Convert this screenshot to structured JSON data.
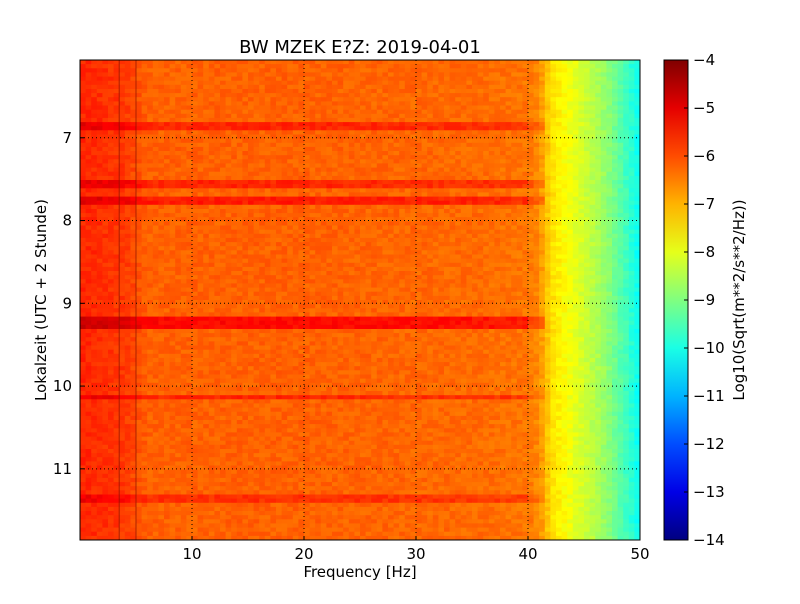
{
  "chart_data": {
    "type": "heatmap",
    "title": "BW MZEK E?Z: 2019-04-01",
    "xlabel": "Frequency [Hz]",
    "ylabel": "Lokalzeit (UTC + 2 Stunde)",
    "colorbar_label": "Log10(Sqrt(m**2/s**2/Hz))",
    "colormap": "jet",
    "xlim": [
      0,
      50
    ],
    "ylim": [
      6.06,
      11.86
    ],
    "y_inverted": true,
    "clim": [
      -14,
      -4
    ],
    "grid": true,
    "x_ticks": [
      10,
      20,
      30,
      40,
      50
    ],
    "x_tick_labels": [
      "10",
      "20",
      "30",
      "40",
      "50"
    ],
    "y_ticks": [
      7,
      8,
      9,
      10,
      11
    ],
    "y_tick_labels": [
      "7",
      "8",
      "9",
      "10",
      "11"
    ],
    "colorbar_ticks": [
      -4,
      -5,
      -6,
      -7,
      -8,
      -9,
      -10,
      -11,
      -12,
      -13,
      -14
    ],
    "colorbar_tick_labels": [
      "−4",
      "−5",
      "−6",
      "−7",
      "−8",
      "−9",
      "−10",
      "−11",
      "−12",
      "−13",
      "−14"
    ],
    "frequency_profile": {
      "freq_hz": [
        0,
        2,
        4,
        5,
        6,
        10,
        20,
        30,
        36,
        40,
        41,
        42,
        43,
        45,
        47,
        50
      ],
      "log10_amplitude": [
        -5.6,
        -5.7,
        -5.8,
        -6.0,
        -6.2,
        -6.2,
        -6.2,
        -6.25,
        -6.3,
        -6.4,
        -6.6,
        -7.4,
        -7.7,
        -8.2,
        -8.8,
        -10.2
      ]
    },
    "time_bands": [
      {
        "time_h": 6.85,
        "boost": 0.6
      },
      {
        "time_h": 7.55,
        "boost": 0.6
      },
      {
        "time_h": 7.77,
        "boost": 0.7
      },
      {
        "time_h": 9.2,
        "boost": 0.9
      },
      {
        "time_h": 9.25,
        "boost": 0.9
      },
      {
        "time_h": 10.13,
        "boost": 0.6
      },
      {
        "time_h": 11.37,
        "boost": 0.5
      }
    ],
    "vertical_lines_hz": [
      3.5,
      5.0
    ]
  }
}
